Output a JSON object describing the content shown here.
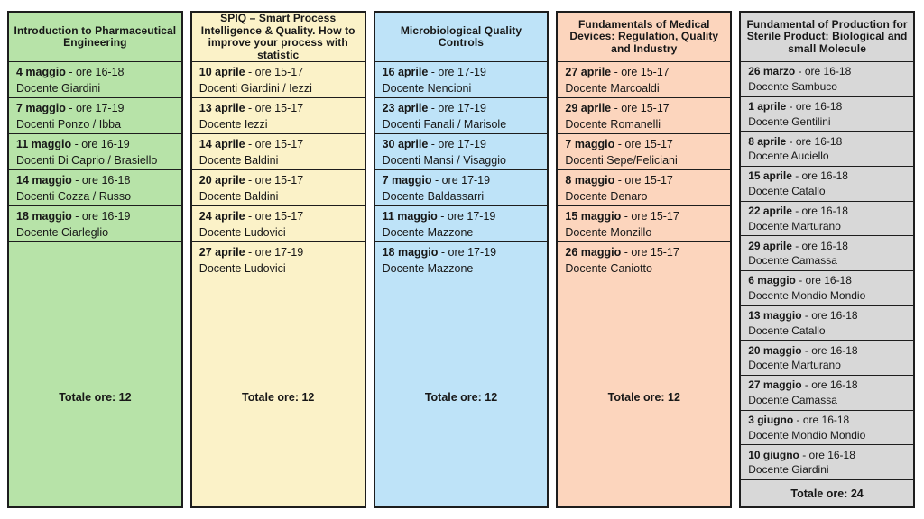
{
  "separator": " - ",
  "columns": [
    {
      "title": "Introduction to Pharmaceutical Engineering",
      "color": "#b7e3a8",
      "total": "Totale ore: 12",
      "sessions": [
        {
          "date": "4 maggio",
          "time": "ore 16-18",
          "teacher": "Docente Giardini"
        },
        {
          "date": "7 maggio",
          "time": "ore 17-19",
          "teacher": "Docenti Ponzo / Ibba"
        },
        {
          "date": "11 maggio",
          "time": "ore 16-19",
          "teacher": "Docenti Di Caprio / Brasiello"
        },
        {
          "date": "14 maggio",
          "time": "ore 16-18",
          "teacher": "Docenti Cozza / Russo"
        },
        {
          "date": "18 maggio",
          "time": "ore 16-19",
          "teacher": "Docente Ciarleglio"
        }
      ]
    },
    {
      "title": "SPIQ – Smart Process Intelligence & Quality. How to improve your process with statistic",
      "color": "#fbf2c8",
      "total": "Totale ore: 12",
      "sessions": [
        {
          "date": "10 aprile",
          "time": "ore 15-17",
          "teacher": "Docenti Giardini / Iezzi"
        },
        {
          "date": "13 aprile",
          "time": "ore 15-17",
          "teacher": "Docente Iezzi"
        },
        {
          "date": "14 aprile",
          "time": "ore 15-17",
          "teacher": "Docente Baldini"
        },
        {
          "date": "20 aprile",
          "time": "ore 15-17",
          "teacher": "Docente Baldini"
        },
        {
          "date": "24 aprile",
          "time": "ore 15-17",
          "teacher": "Docente Ludovici"
        },
        {
          "date": "27 aprile",
          "time": "ore 17-19",
          "teacher": "Docente Ludovici"
        }
      ]
    },
    {
      "title": "Microbiological Quality Controls",
      "color": "#bee3f8",
      "total": "Totale ore: 12",
      "sessions": [
        {
          "date": "16 aprile",
          "time": "ore 17-19",
          "teacher": "Docente Nencioni"
        },
        {
          "date": "23 aprile",
          "time": "ore 17-19",
          "teacher": "Docenti Fanali / Marisole"
        },
        {
          "date": "30 aprile",
          "time": "ore 17-19",
          "teacher": "Docenti Mansi / Visaggio"
        },
        {
          "date": "7 maggio",
          "time": "ore 17-19",
          "teacher": "Docente Baldassarri"
        },
        {
          "date": "11 maggio",
          "time": "ore 17-19",
          "teacher": "Docente Mazzone"
        },
        {
          "date": "18 maggio",
          "time": "ore 17-19",
          "teacher": "Docente Mazzone"
        }
      ]
    },
    {
      "title": "Fundamentals of Medical Devices: Regulation, Quality and Industry",
      "color": "#fcd5bd",
      "total": "Totale ore: 12",
      "sessions": [
        {
          "date": "27 aprile",
          "time": "ore 15-17",
          "teacher": "Docente Marcoaldi"
        },
        {
          "date": "29 aprile",
          "time": "ore 15-17",
          "teacher": "Docente Romanelli"
        },
        {
          "date": "7 maggio",
          "time": "ore 15-17",
          "teacher": "Docenti Sepe/Feliciani"
        },
        {
          "date": "8 maggio",
          "time": "ore 15-17",
          "teacher": "Docente Denaro"
        },
        {
          "date": "15 maggio",
          "time": "ore 15-17",
          "teacher": "Docente Monzillo"
        },
        {
          "date": "26 maggio",
          "time": "ore 15-17",
          "teacher": "Docente Caniotto"
        }
      ]
    },
    {
      "title": "Fundamental of Production for Sterile Product: Biological and small Molecule",
      "color": "#d8d8d8",
      "total": "Totale ore: 24",
      "sessions": [
        {
          "date": "26 marzo",
          "time": "ore 16-18",
          "teacher": "Docente Sambuco"
        },
        {
          "date": "1 aprile",
          "time": "ore 16-18",
          "teacher": "Docente Gentilini"
        },
        {
          "date": "8 aprile",
          "time": "ore 16-18",
          "teacher": "Docente Auciello"
        },
        {
          "date": "15 aprile",
          "time": "ore 16-18",
          "teacher": "Docente Catallo"
        },
        {
          "date": "22 aprile",
          "time": "ore 16-18",
          "teacher": "Docente Marturano"
        },
        {
          "date": "29 aprile",
          "time": "ore 16-18",
          "teacher": "Docente Camassa"
        },
        {
          "date": "6 maggio",
          "time": "ore 16-18",
          "teacher": "Docente Mondio Mondio"
        },
        {
          "date": "13 maggio",
          "time": "ore 16-18",
          "teacher": "Docente Catallo"
        },
        {
          "date": "20 maggio",
          "time": "ore 16-18",
          "teacher": "Docente Marturano"
        },
        {
          "date": "27 maggio",
          "time": "ore 16-18",
          "teacher": "Docente Camassa"
        },
        {
          "date": "3 giugno",
          "time": "ore 16-18",
          "teacher": "Docente Mondio Mondio"
        },
        {
          "date": "10 giugno",
          "time": "ore 16-18",
          "teacher": "Docente Giardini"
        }
      ]
    }
  ]
}
